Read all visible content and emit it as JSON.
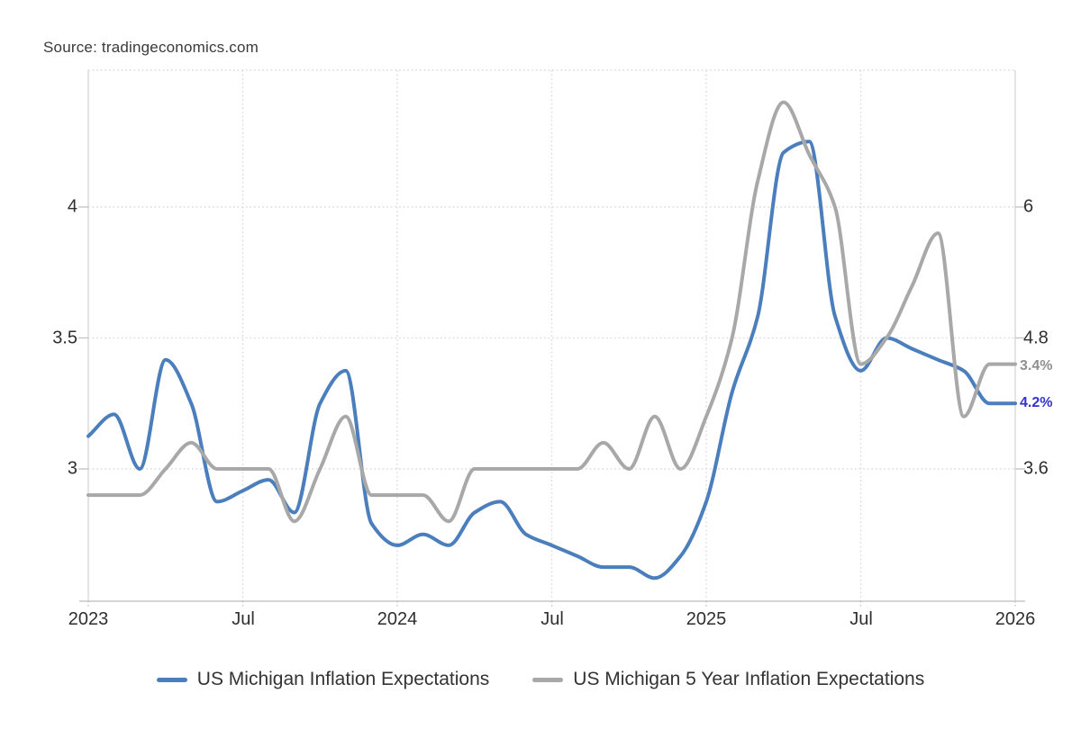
{
  "source": {
    "text": "Source: tradingeconomics.com"
  },
  "chart_data": {
    "type": "line",
    "frequency": "monthly",
    "start": "Jan 2023",
    "end": "Dec 2025",
    "unit": "percent",
    "grid": "dotted",
    "legend_position": "bottom",
    "x_axis": {
      "tick_labels": [
        "2023",
        "Jul",
        "2024",
        "Jul",
        "2025",
        "Jul",
        "2026"
      ]
    },
    "left_axis": {
      "tick_labels": [
        "4",
        "3.5",
        "3"
      ],
      "tick_values": [
        4,
        3.5,
        3
      ],
      "applies_to": "US Michigan 5 Year Inflation Expectations"
    },
    "right_axis": {
      "tick_labels": [
        "6",
        "4.8",
        "3.6"
      ],
      "tick_values": [
        6,
        4.8,
        3.6
      ],
      "applies_to": "US Michigan Inflation Expectations"
    },
    "series": [
      {
        "name": "US Michigan Inflation Expectations",
        "axis": "right",
        "color": "#4a7ebd",
        "last_value_label": "4.2%",
        "label_color": "#3333cc",
        "values": [
          3.9,
          4.1,
          3.6,
          4.6,
          4.2,
          3.3,
          3.4,
          3.5,
          3.2,
          4.2,
          4.5,
          3.1,
          2.9,
          3.0,
          2.9,
          3.2,
          3.3,
          3.0,
          2.9,
          2.8,
          2.7,
          2.7,
          2.6,
          2.8,
          3.3,
          4.3,
          5.0,
          6.5,
          6.6,
          5.0,
          4.5,
          4.8,
          4.7,
          4.6,
          4.5,
          4.2
        ]
      },
      {
        "name": "US Michigan 5 Year Inflation Expectations",
        "axis": "left",
        "color": "#a8a8a8",
        "last_value_label": "3.4%",
        "label_color": "#8f8f8f",
        "values": [
          2.9,
          2.9,
          2.9,
          3.0,
          3.1,
          3.0,
          3.0,
          3.0,
          2.8,
          3.0,
          3.2,
          2.9,
          2.9,
          2.9,
          2.8,
          3.0,
          3.0,
          3.0,
          3.0,
          3.0,
          3.1,
          3.0,
          3.2,
          3.0,
          3.2,
          3.5,
          4.1,
          4.4,
          4.2,
          4.0,
          3.4,
          3.5,
          3.7,
          3.9,
          3.2,
          3.4
        ]
      }
    ]
  }
}
